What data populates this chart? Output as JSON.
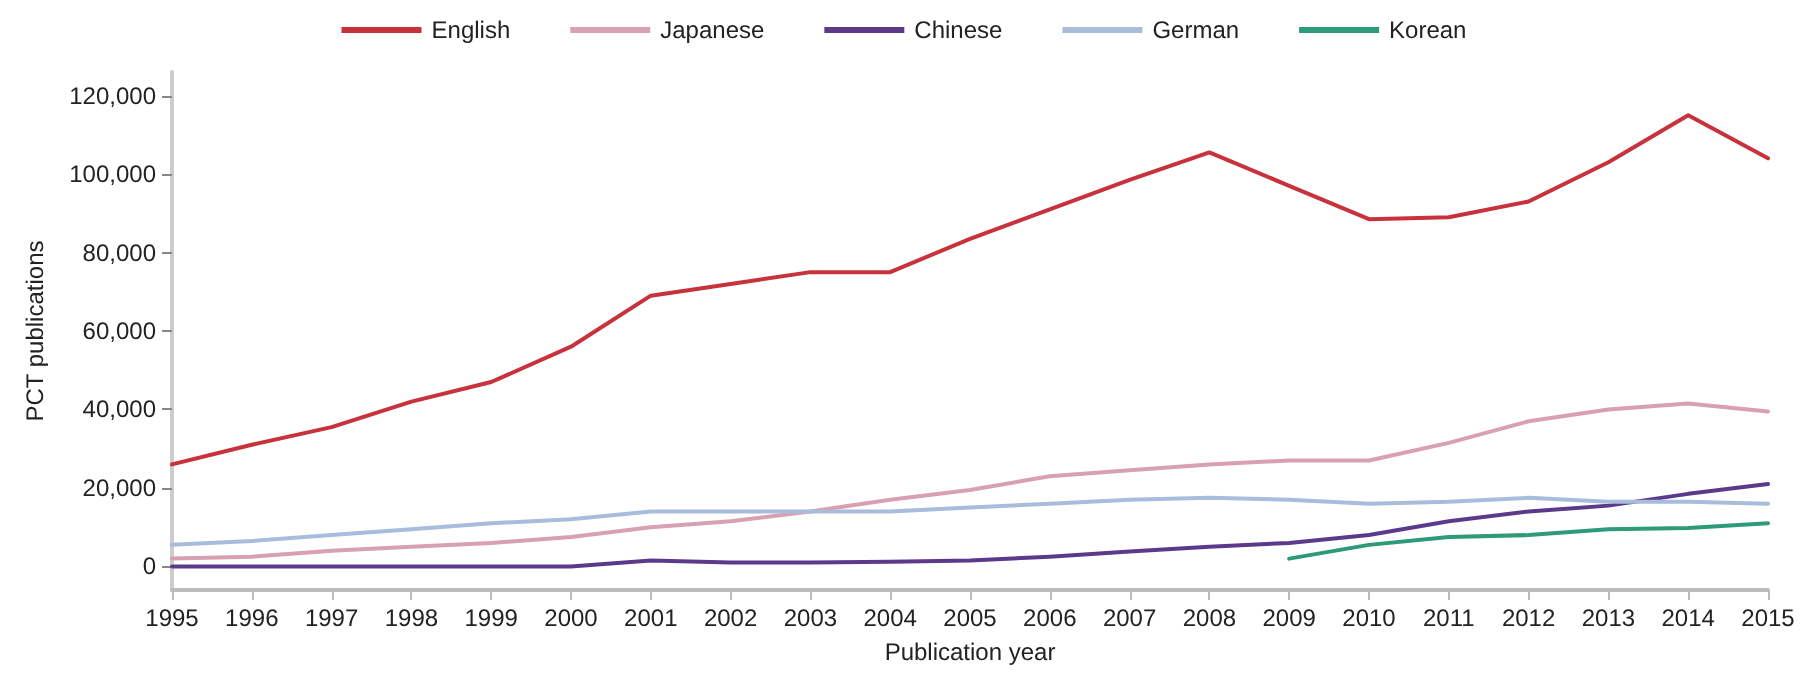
{
  "chart_data": {
    "type": "line",
    "xlabel": "Publication year",
    "ylabel": "PCT publications",
    "categories": [
      "1995",
      "1996",
      "1997",
      "1998",
      "1999",
      "2000",
      "2001",
      "2002",
      "2003",
      "2004",
      "2005",
      "2006",
      "2007",
      "2008",
      "2009",
      "2010",
      "2011",
      "2012",
      "2013",
      "2014",
      "2015"
    ],
    "series": [
      {
        "name": "English",
        "color": "#c8323c",
        "values": [
          26000,
          31000,
          35500,
          42000,
          47000,
          56000,
          69000,
          72000,
          75000,
          75000,
          83500,
          91000,
          98500,
          105500,
          97000,
          88500,
          89000,
          93000,
          103000,
          115000,
          104000
        ]
      },
      {
        "name": "Japanese",
        "color": "#d8a0b0",
        "values": [
          2000,
          2500,
          4000,
          5000,
          6000,
          7500,
          10000,
          11500,
          14000,
          17000,
          19500,
          23000,
          24500,
          26000,
          27000,
          27000,
          31500,
          37000,
          40000,
          41500,
          39500
        ]
      },
      {
        "name": "Chinese",
        "color": "#5b3a8c",
        "values": [
          0,
          0,
          0,
          0,
          0,
          0,
          1500,
          1000,
          1000,
          1200,
          1500,
          2500,
          3800,
          5000,
          6000,
          8000,
          11500,
          14000,
          15500,
          18500,
          21000
        ]
      },
      {
        "name": "German",
        "color": "#a8bcdc",
        "values": [
          5500,
          6500,
          8000,
          9500,
          11000,
          12000,
          14000,
          14000,
          14000,
          14000,
          15000,
          16000,
          17000,
          17500,
          17000,
          16000,
          16500,
          17500,
          16500,
          16500,
          16000
        ]
      },
      {
        "name": "Korean",
        "color": "#2e9a7a",
        "values": [
          null,
          null,
          null,
          null,
          null,
          null,
          null,
          null,
          null,
          null,
          null,
          null,
          null,
          null,
          2000,
          5500,
          7500,
          8000,
          9500,
          9800,
          11000
        ]
      }
    ],
    "ylim": [
      -6000,
      126000
    ],
    "yticks": [
      0,
      {
        "value": 20000,
        "label": "20,000"
      },
      {
        "value": 40000,
        "label": "40,000"
      },
      {
        "value": 60000,
        "label": "60,000"
      },
      {
        "value": 80000,
        "label": "80,000"
      },
      {
        "value": 100000,
        "label": "100,000"
      },
      {
        "value": 120000,
        "label": "120,000"
      }
    ],
    "grid": false,
    "legend": "top",
    "marker": "none",
    "line_style": "solid"
  }
}
